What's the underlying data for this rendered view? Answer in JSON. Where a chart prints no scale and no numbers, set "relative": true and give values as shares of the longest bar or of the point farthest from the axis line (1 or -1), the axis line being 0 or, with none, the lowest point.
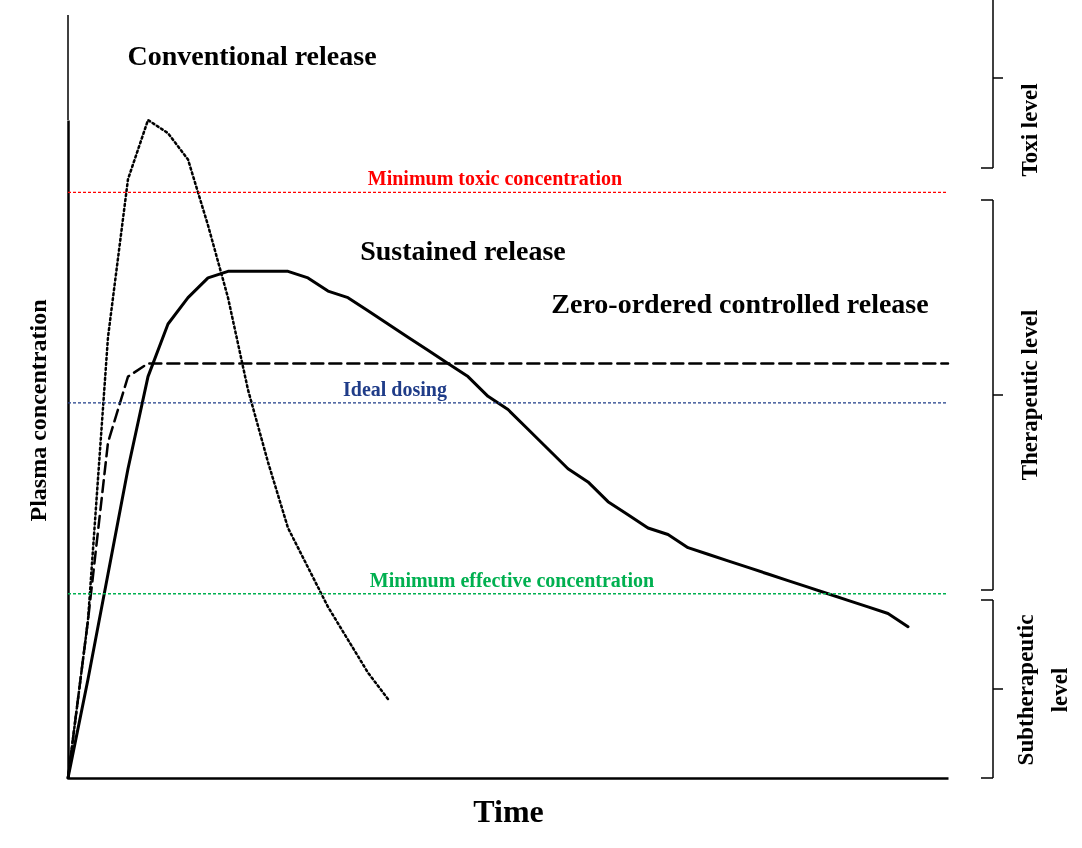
{
  "chart_data": {
    "type": "line",
    "relative": true,
    "tick_labels": false,
    "grid": false,
    "xlabel": "Time",
    "ylabel": "Plasma concentration",
    "categories": [
      null,
      null,
      null,
      null,
      null,
      null,
      null,
      null,
      null,
      null,
      null,
      null,
      null,
      null,
      null,
      null,
      null,
      null,
      null,
      null,
      null,
      null,
      null,
      null,
      null,
      null,
      null,
      null,
      null,
      null,
      null,
      null,
      null,
      null,
      null,
      null,
      null,
      null,
      null,
      null,
      null,
      null,
      null,
      null,
      null
    ],
    "series": [
      {
        "name": "Conventional release",
        "color": "#000000",
        "line_style": "dotted",
        "values": [
          0,
          0.24,
          0.67,
          0.91,
          1.0,
          0.98,
          0.94,
          0.84,
          0.73,
          0.59,
          0.48,
          0.38,
          0.32,
          0.26,
          0.21,
          0.16,
          0.12,
          null,
          null,
          null,
          null,
          null,
          null,
          null,
          null,
          null,
          null,
          null,
          null,
          null,
          null,
          null,
          null,
          null,
          null,
          null,
          null,
          null,
          null,
          null,
          null,
          null,
          null,
          null,
          null
        ]
      },
      {
        "name": "Sustained release",
        "color": "#000000",
        "line_style": "solid",
        "values": [
          0,
          0.15,
          0.31,
          0.47,
          0.61,
          0.69,
          0.73,
          0.76,
          0.77,
          0.77,
          0.77,
          0.77,
          0.76,
          0.74,
          0.73,
          0.71,
          0.69,
          0.67,
          0.65,
          0.63,
          0.61,
          0.58,
          0.56,
          0.53,
          0.5,
          0.47,
          0.45,
          0.42,
          0.4,
          0.38,
          0.37,
          0.35,
          0.34,
          0.33,
          0.32,
          0.31,
          0.3,
          0.29,
          0.28,
          0.27,
          0.26,
          0.25,
          0.23,
          null,
          null
        ]
      },
      {
        "name": "Zero-ordered controlled release",
        "color": "#000000",
        "line_style": "dashed",
        "values": [
          0,
          0.24,
          0.51,
          0.61,
          0.63,
          0.63,
          0.63,
          0.63,
          0.63,
          0.63,
          0.63,
          0.63,
          0.63,
          0.63,
          0.63,
          0.63,
          0.63,
          0.63,
          0.63,
          0.63,
          0.63,
          0.63,
          0.63,
          0.63,
          0.63,
          0.63,
          0.63,
          0.63,
          0.63,
          0.63,
          0.63,
          0.63,
          0.63,
          0.63,
          0.63,
          0.63,
          0.63,
          0.63,
          0.63,
          0.63,
          0.63,
          0.63,
          0.63,
          0.63,
          0.63
        ]
      }
    ],
    "ref_lines": [
      {
        "axis": "y",
        "value": 0.89,
        "label": "Minimum toxic concentration",
        "color": "#ff0000",
        "line_style": "dashed"
      },
      {
        "axis": "y",
        "value": 0.57,
        "label": "Ideal dosing",
        "color": "#1f3c88",
        "line_style": "dashed"
      },
      {
        "axis": "y",
        "value": 0.28,
        "label": "Minimum effective concentration",
        "color": "#00b050",
        "line_style": "dashed"
      }
    ],
    "annotations": [
      "Toxi level",
      "Therapeutic level",
      "Subtherapeutic level"
    ]
  }
}
